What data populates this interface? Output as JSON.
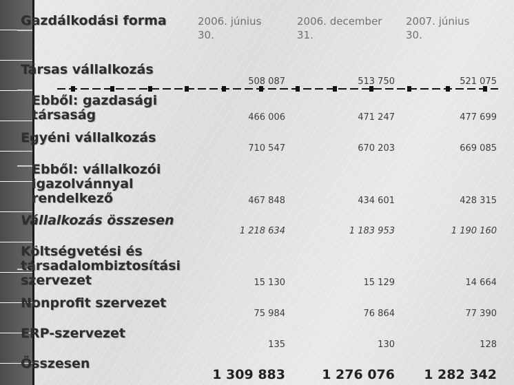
{
  "header": {
    "col0": "Gazdálkodási forma",
    "col1": "2006. június 30.",
    "col2": "2006. december 31.",
    "col3": "2007. június 30."
  },
  "rows": [
    {
      "label": "Társas vállalkozás",
      "v1": "508 087",
      "v2": "513 750",
      "v3": "521 075"
    },
    {
      "label": "Ebből: gazdasági társaság",
      "v1": "466 006",
      "v2": "471 247",
      "v3": "477 699"
    },
    {
      "label": "Egyéni vállalkozás",
      "v1": "710 547",
      "v2": "670 203",
      "v3": "669 085"
    },
    {
      "label": "Ebből: vállalkozói igazolvánnyal rendelkező",
      "v1": "467 848",
      "v2": "434 601",
      "v3": "428 315"
    },
    {
      "label": "Vállalkozás összesen",
      "v1": "1 218 634",
      "v2": "1 183 953",
      "v3": "1 190 160"
    },
    {
      "label": "Költségvetési és társadalombiztosítási szervezet",
      "v1": "15 130",
      "v2": "15 129",
      "v3": "14 664"
    },
    {
      "label": "Nonprofit szervezet",
      "v1": "75 984",
      "v2": "76 864",
      "v3": "77 390"
    },
    {
      "label": "ERP-szervezet",
      "v1": "135",
      "v2": "130",
      "v3": "128"
    },
    {
      "label": "Összesen",
      "v1": "1 309 883",
      "v2": "1 276 076",
      "v3": "1 282 342"
    }
  ]
}
